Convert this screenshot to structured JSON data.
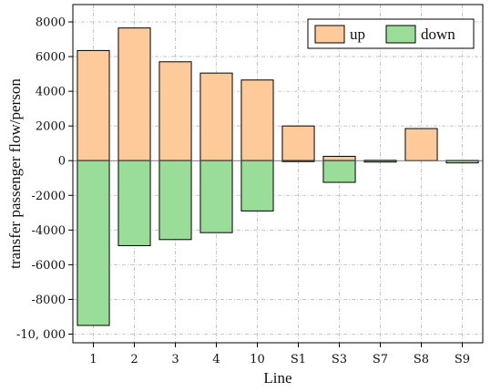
{
  "chart_data": {
    "type": "bar",
    "xlabel": "Line",
    "ylabel": "transfer passenger flow/person",
    "categories": [
      "1",
      "2",
      "3",
      "4",
      "10",
      "S1",
      "S3",
      "S7",
      "S8",
      "S9"
    ],
    "series": [
      {
        "name": "up",
        "color": "#FFCA99",
        "values": [
          6350,
          7650,
          5700,
          5050,
          4650,
          2000,
          250,
          20,
          1850,
          10
        ]
      },
      {
        "name": "down",
        "color": "#99DD99",
        "values": [
          -9500,
          -4900,
          -4550,
          -4150,
          -2900,
          -50,
          -1250,
          -80,
          0,
          -130
        ]
      }
    ],
    "ylim": [
      -10500,
      9000
    ],
    "yticks": [
      8000,
      6000,
      4000,
      2000,
      0,
      -2000,
      -4000,
      -6000,
      -8000,
      -10000
    ],
    "ytick_labels": [
      "8000",
      "6000",
      "4000",
      "2000",
      "0",
      "-2000",
      "-4000",
      "-6000",
      "-8000",
      "-10, 000"
    ],
    "grid": true,
    "legend_position": "top-right"
  }
}
